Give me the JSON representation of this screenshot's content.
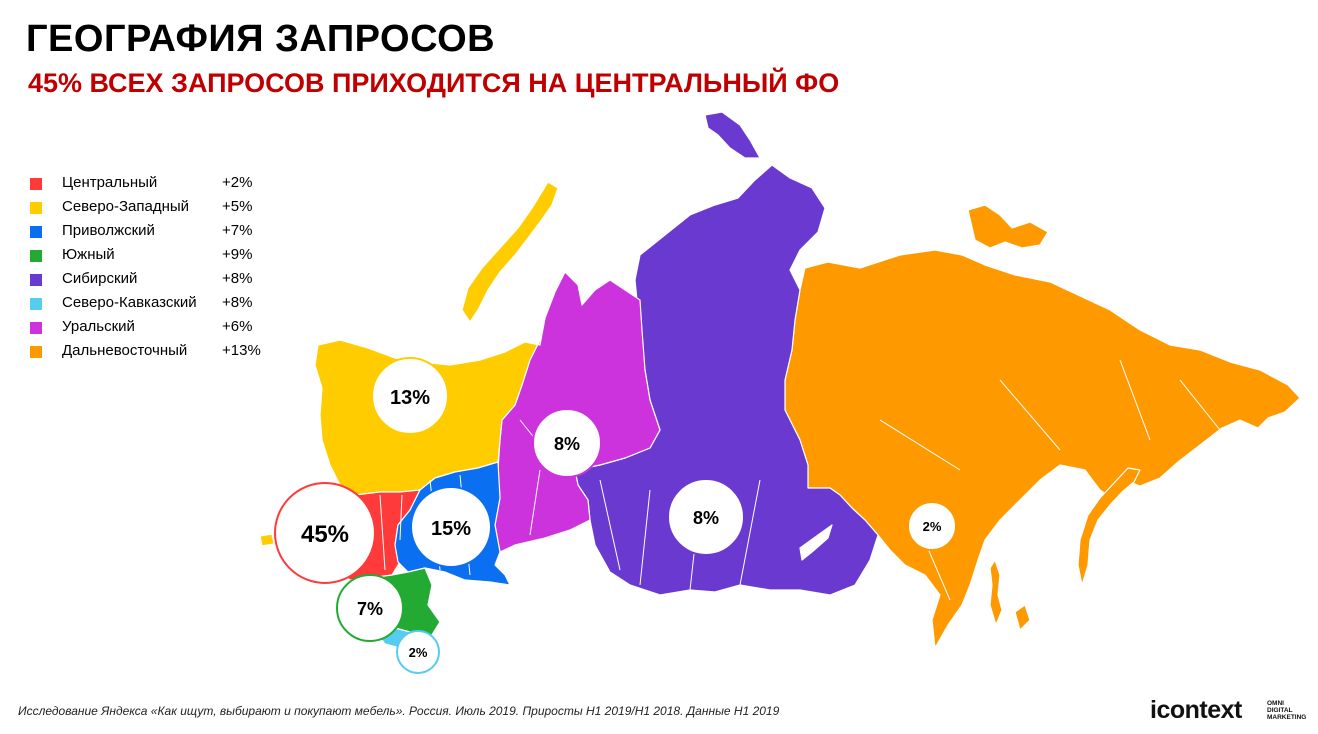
{
  "title": "ГЕОГРАФИЯ ЗАПРОСОВ",
  "subtitle": "45% ВСЕХ ЗАПРОСОВ ПРИХОДИТСЯ НА ЦЕНТРАЛЬНЫЙ ФО",
  "legend": [
    {
      "label": "Центральный",
      "growth": "+2%",
      "color": "#ff3a3a"
    },
    {
      "label": "Северо-Западный",
      "growth": "+5%",
      "color": "#ffcc00"
    },
    {
      "label": "Приволжский",
      "growth": "+7%",
      "color": "#0a6ff0"
    },
    {
      "label": "Южный",
      "growth": "+9%",
      "color": "#22aa33"
    },
    {
      "label": "Сибирский",
      "growth": "+8%",
      "color": "#6a3ad0"
    },
    {
      "label": "Северо-Кавказский",
      "growth": "+8%",
      "color": "#55ccf0"
    },
    {
      "label": "Уральский",
      "growth": "+6%",
      "color": "#cc33dd"
    },
    {
      "label": "Дальневосточный",
      "growth": "+13%",
      "color": "#ff9900"
    }
  ],
  "map_shares": {
    "central": "45%",
    "northwest": "13%",
    "volga": "15%",
    "south": "7%",
    "north_caucasus": "2%",
    "ural": "8%",
    "siberia": "8%",
    "far_east": "2%"
  },
  "footer": "Исследование Яндекса «Как ищут, выбирают и покупают мебель». Россия. Июль 2019.  Приросты H1 2019/H1 2018. Данные H1 2019",
  "logo": {
    "main": "icontext",
    "sub1": "OMNI",
    "sub2": "DIGITAL",
    "sub3": "MARKETING"
  }
}
